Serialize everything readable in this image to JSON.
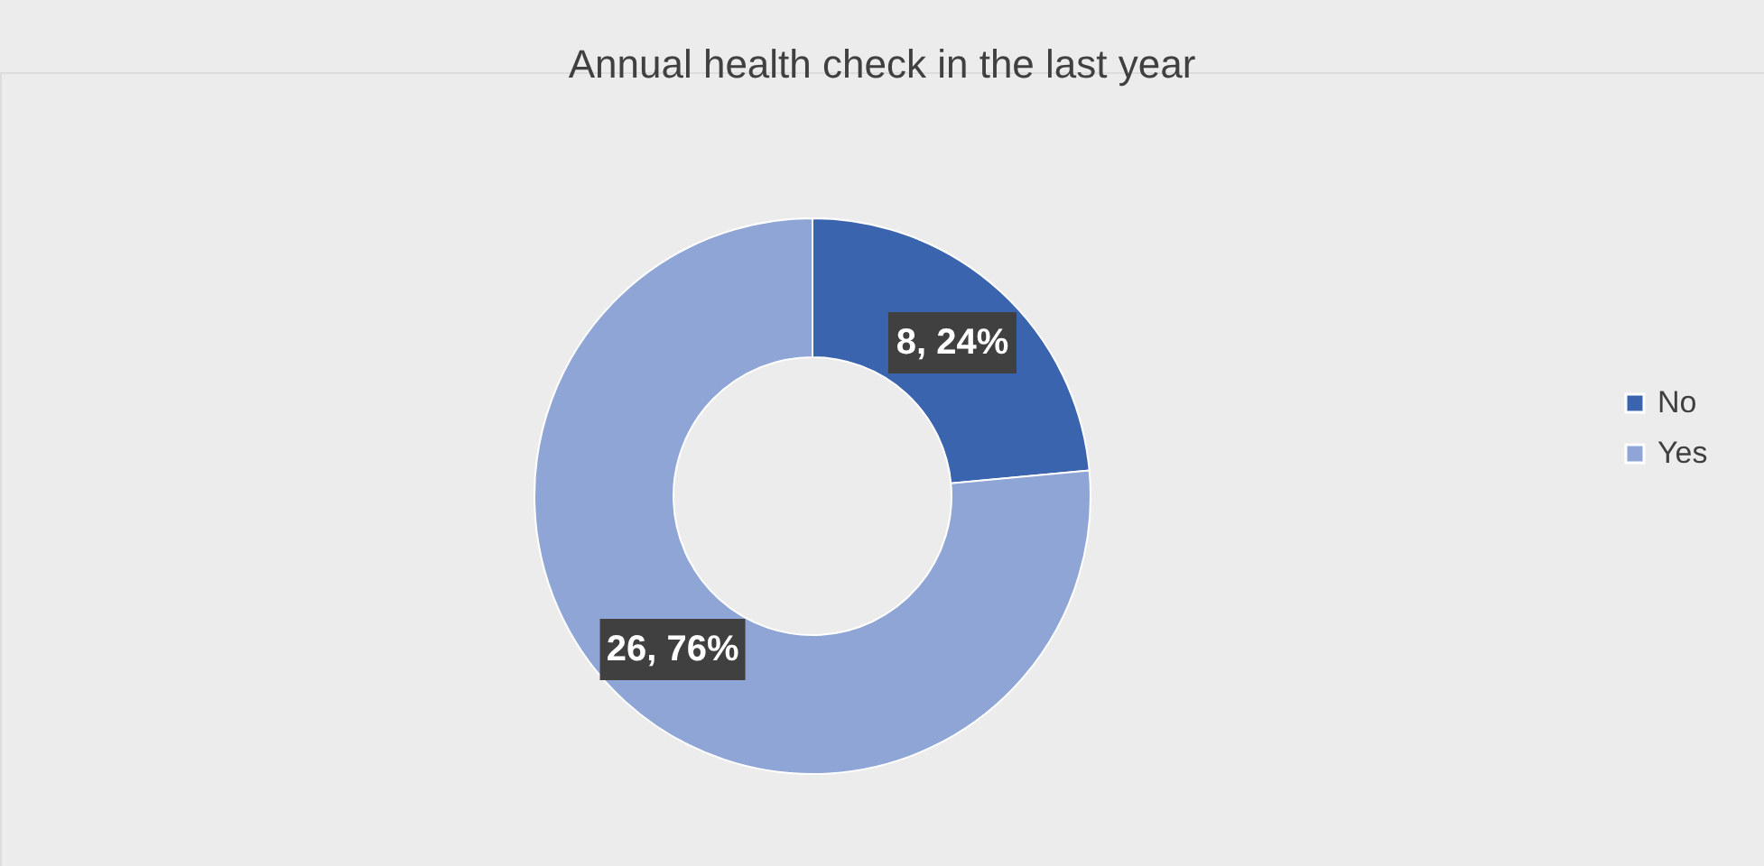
{
  "chart_data": {
    "type": "donut",
    "title": "Annual health check in the last year",
    "categories": [
      "No",
      "Yes"
    ],
    "values": [
      8,
      26
    ],
    "colors": [
      "#3a64ae",
      "#8ea5d6"
    ],
    "value_labels": [
      "8, 24%",
      "26, 76%"
    ],
    "legend": "right"
  }
}
